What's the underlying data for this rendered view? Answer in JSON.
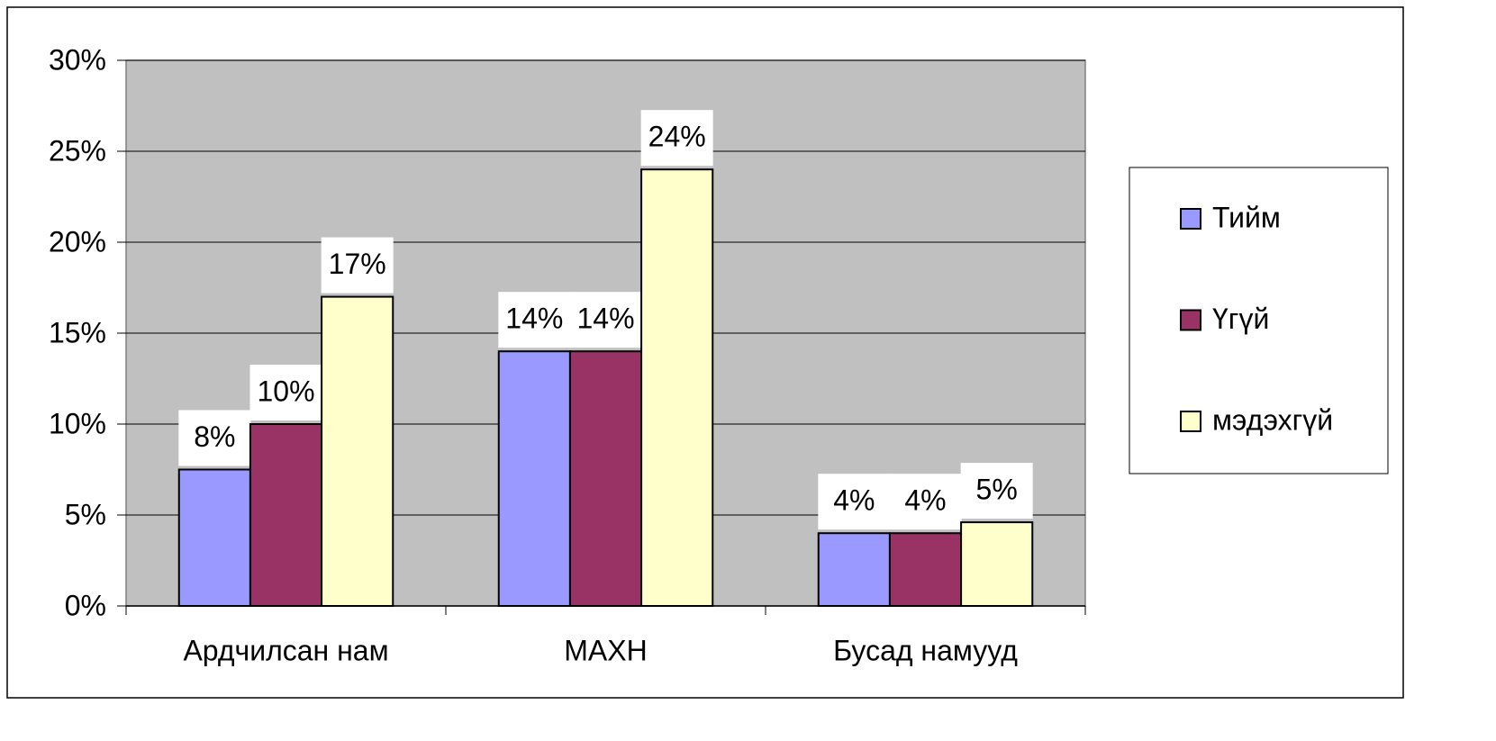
{
  "chart_data": {
    "type": "bar",
    "categories": [
      "Ардчилсан нам",
      "МАХН",
      "Бусад намууд"
    ],
    "series": [
      {
        "name": "Тийм",
        "color": "#9999ff",
        "values": [
          7.5,
          14,
          4
        ],
        "value_labels": [
          "8%",
          "14%",
          "4%"
        ]
      },
      {
        "name": "Үгүй",
        "color": "#993366",
        "values": [
          10,
          14,
          4
        ],
        "value_labels": [
          "10%",
          "14%",
          "4%"
        ]
      },
      {
        "name": "мэдэхгүй",
        "color": "#ffffcc",
        "values": [
          17,
          24,
          4.6
        ],
        "value_labels": [
          "17%",
          "24%",
          "5%"
        ]
      }
    ],
    "ylim": [
      0,
      30
    ],
    "yticks": [
      {
        "value": 0,
        "label": "0%"
      },
      {
        "value": 5,
        "label": "5%"
      },
      {
        "value": 10,
        "label": "10%"
      },
      {
        "value": 15,
        "label": "15%"
      },
      {
        "value": 20,
        "label": "20%"
      },
      {
        "value": 25,
        "label": "25%"
      },
      {
        "value": 30,
        "label": "30%"
      }
    ],
    "grid": true,
    "legend": "right"
  }
}
